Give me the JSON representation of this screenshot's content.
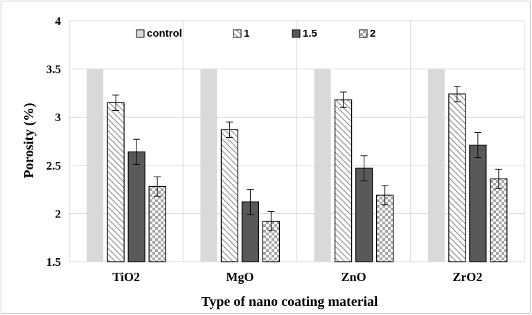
{
  "chart_data": {
    "type": "bar",
    "title": "",
    "xlabel": "Type of nano coating material",
    "ylabel": "Porosity (%)",
    "ylim": [
      1.5,
      4
    ],
    "yticks": [
      "1.5",
      "2",
      "2.5",
      "3",
      "3.5",
      "4"
    ],
    "categories": [
      "TiO2",
      "MgO",
      "ZnO",
      "ZrO2"
    ],
    "grid": true,
    "legend_position": "top",
    "series": [
      {
        "name": "control",
        "values": [
          3.5,
          3.5,
          3.5,
          3.5
        ],
        "errors": [
          0,
          0,
          0,
          0
        ],
        "fill": "#d9d9d9",
        "pattern": "solid"
      },
      {
        "name": "1",
        "values": [
          3.15,
          2.87,
          3.18,
          3.24
        ],
        "errors": [
          0.08,
          0.08,
          0.08,
          0.08
        ],
        "fill": "#ffffff",
        "pattern": "diagonal-hatch"
      },
      {
        "name": "1.5",
        "values": [
          2.64,
          2.12,
          2.47,
          2.71
        ],
        "errors": [
          0.13,
          0.13,
          0.13,
          0.13
        ],
        "fill": "#595959",
        "pattern": "solid"
      },
      {
        "name": "2",
        "values": [
          2.28,
          1.92,
          2.19,
          2.36
        ],
        "errors": [
          0.1,
          0.1,
          0.1,
          0.1
        ],
        "fill": "#ffffff",
        "pattern": "checker"
      }
    ],
    "colors": {
      "grid": "#d9d9d9",
      "bar_outline": "#000000",
      "error_bar": "#000000"
    }
  }
}
